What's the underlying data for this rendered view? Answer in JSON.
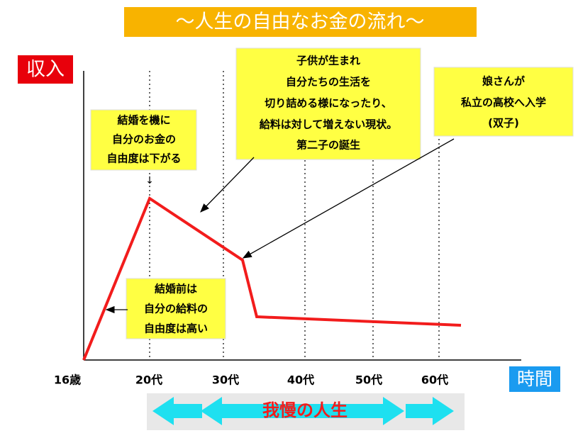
{
  "title": "〜人生の自由なお金の流れ〜",
  "y_label": "収入",
  "x_label": "時間",
  "x_labels": [
    "16歳",
    "20代",
    "30代",
    "40代",
    "50代",
    "60代"
  ],
  "notes": [
    [
      "結婚を機に",
      "自分のお金の",
      "自由度は下がる"
    ],
    [
      "子供が生まれ",
      "自分たちの生活を",
      "切り詰める様になったり、",
      "給料は対して増えない現状。",
      "第二子の誕生"
    ],
    [
      "娘さんが",
      "私立の高校へ入学",
      "(双子)"
    ],
    [
      "結婚前は",
      "自分の給料の",
      "自由度は高い"
    ]
  ],
  "marker": "↓",
  "footer": "我慢の人生"
}
